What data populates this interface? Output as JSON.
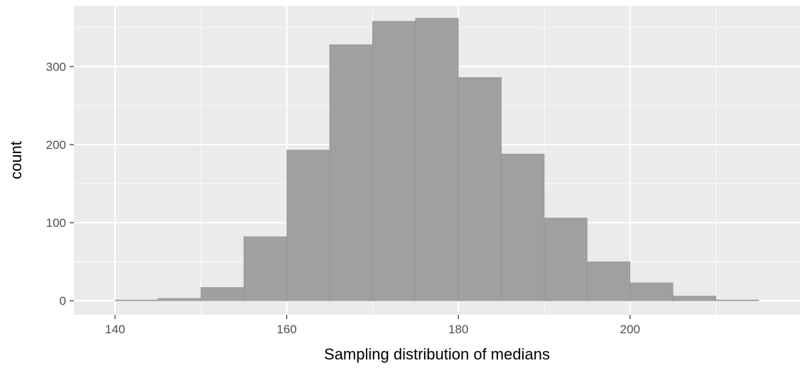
{
  "chart_data": {
    "type": "bar",
    "subtype": "histogram",
    "title": "",
    "xlabel": "Sampling distribution of medians",
    "ylabel": "count",
    "xlim": [
      135.2,
      219.8
    ],
    "ylim": [
      -18,
      378
    ],
    "x_ticks": [
      140,
      160,
      180,
      200
    ],
    "y_ticks": [
      0,
      100,
      200,
      300
    ],
    "x_tick_labels": [
      "140",
      "160",
      "180",
      "200"
    ],
    "y_tick_labels": [
      "0",
      "100",
      "200",
      "300"
    ],
    "grid": true,
    "bin_width": 5,
    "bins": [
      {
        "start": 140,
        "end": 145,
        "count": 1
      },
      {
        "start": 145,
        "end": 150,
        "count": 3
      },
      {
        "start": 150,
        "end": 155,
        "count": 17
      },
      {
        "start": 155,
        "end": 160,
        "count": 82
      },
      {
        "start": 160,
        "end": 165,
        "count": 193
      },
      {
        "start": 165,
        "end": 170,
        "count": 328
      },
      {
        "start": 170,
        "end": 175,
        "count": 358
      },
      {
        "start": 175,
        "end": 180,
        "count": 362
      },
      {
        "start": 180,
        "end": 185,
        "count": 286
      },
      {
        "start": 185,
        "end": 190,
        "count": 188
      },
      {
        "start": 190,
        "end": 195,
        "count": 106
      },
      {
        "start": 195,
        "end": 200,
        "count": 50
      },
      {
        "start": 200,
        "end": 205,
        "count": 23
      },
      {
        "start": 205,
        "end": 210,
        "count": 6
      },
      {
        "start": 210,
        "end": 215,
        "count": 1
      }
    ],
    "colors": {
      "panel_background": "#EBEBEB",
      "grid_major": "#FFFFFF",
      "bar_fill": "#A0A0A0",
      "bar_outline": "#8C8C8C",
      "tick_text": "#4D4D4D",
      "axis_title_text": "#000000"
    }
  }
}
